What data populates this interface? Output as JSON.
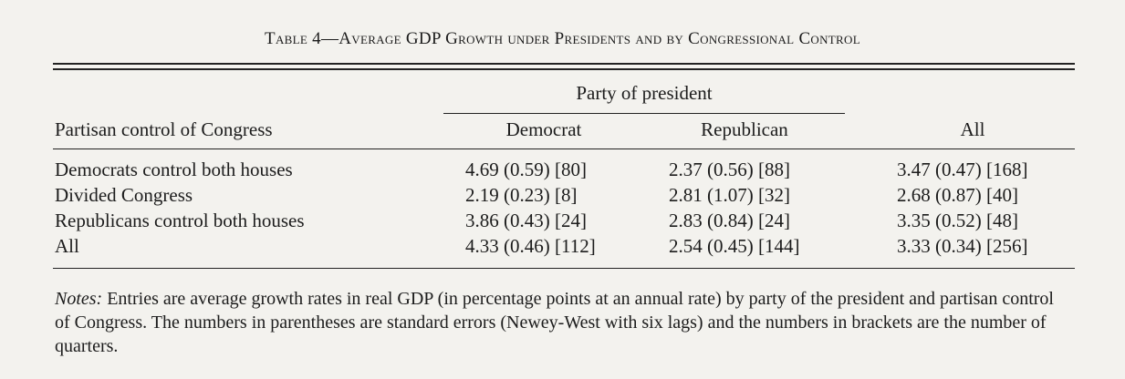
{
  "caption": {
    "prefix": "Table 4",
    "dash": "—",
    "title": "Average GDP Growth under Presidents and by Congressional Control"
  },
  "table": {
    "stub_header": "Partisan control of Congress",
    "spanner": "Party of president",
    "columns": [
      "Democrat",
      "Republican",
      "All"
    ],
    "rows": [
      {
        "label": "Democrats control both houses",
        "cells": [
          "4.69 (0.59) [80]",
          "2.37 (0.56) [88]",
          "3.47 (0.47) [168]"
        ]
      },
      {
        "label": "Divided Congress",
        "cells": [
          "2.19 (0.23) [8]",
          "2.81 (1.07) [32]",
          "2.68 (0.87) [40]"
        ]
      },
      {
        "label": "Republicans control both houses",
        "cells": [
          "3.86 (0.43) [24]",
          "2.83 (0.84) [24]",
          "3.35 (0.52) [48]"
        ]
      },
      {
        "label": "All",
        "cells": [
          "4.33 (0.46) [112]",
          "2.54 (0.45) [144]",
          "3.33 (0.34) [256]"
        ]
      }
    ]
  },
  "notes": {
    "label": "Notes:",
    "text": "Entries are average growth rates in real GDP (in percentage points at an annual rate) by party of the president and partisan control of Congress. The numbers in parentheses are standard errors (Newey-West with six lags) and the numbers in brackets are the number of quarters."
  }
}
